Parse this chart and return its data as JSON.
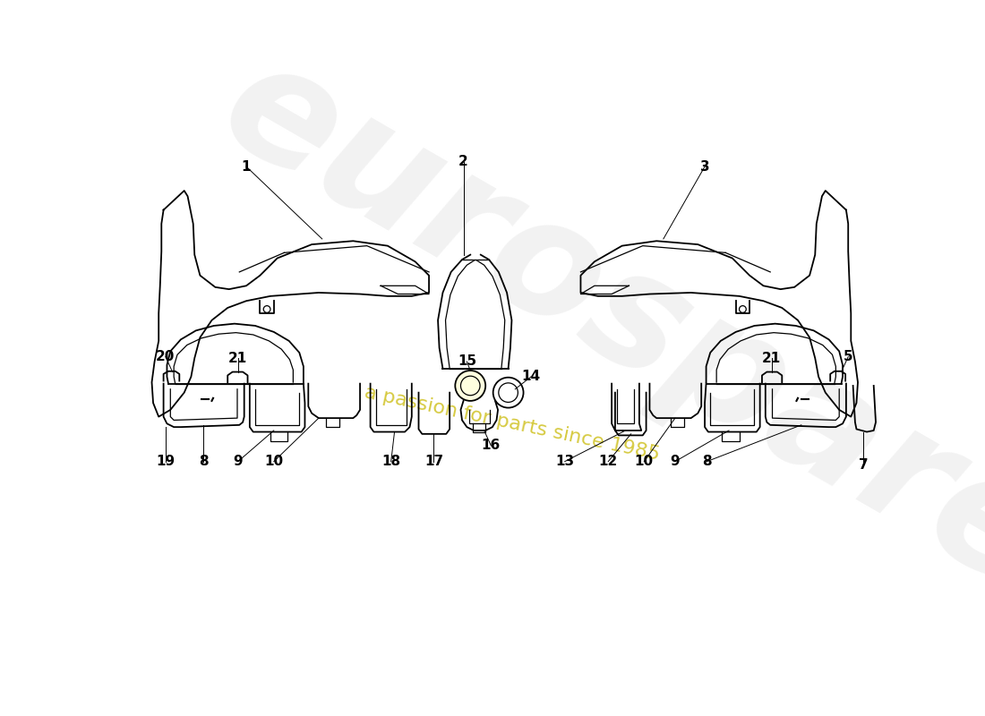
{
  "bg_color": "#ffffff",
  "line_color": "#000000",
  "figsize": [
    11.0,
    8.0
  ],
  "dpi": 100,
  "watermark_color_text": "#c8b800"
}
